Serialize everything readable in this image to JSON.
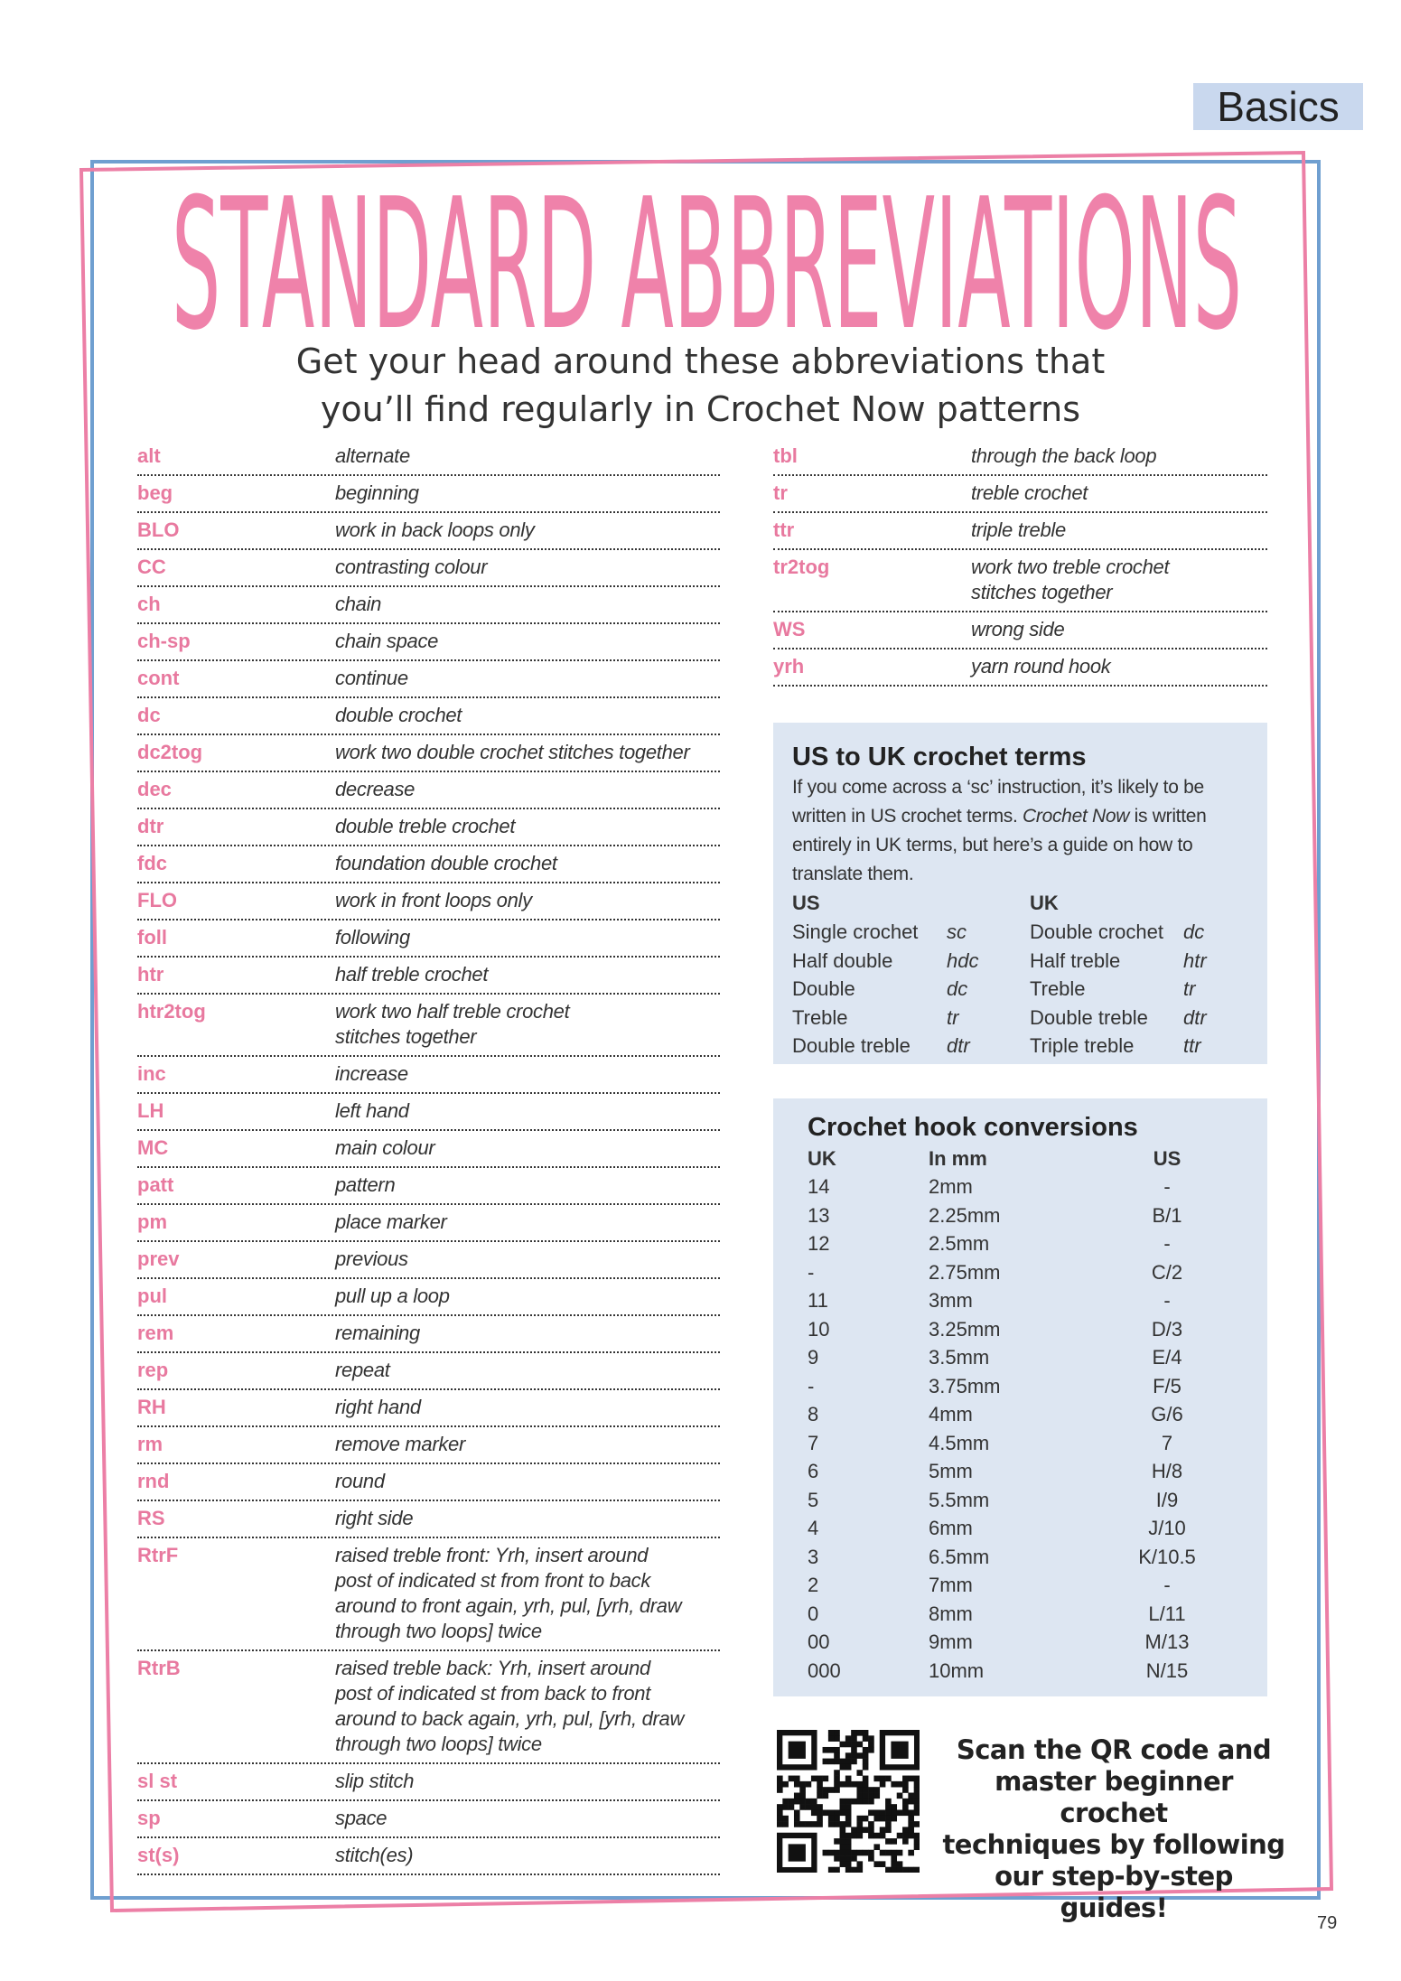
{
  "header": {
    "section": "Basics",
    "title": "STANDARD ABBREVIATIONS",
    "subtitle": [
      "Get your head around these abbreviations that",
      "you’ll find regularly in Crochet Now patterns"
    ]
  },
  "abbreviations": {
    "left": [
      [
        "alt",
        "alternate"
      ],
      [
        "beg",
        "beginning"
      ],
      [
        "BLO",
        "work in back loops only"
      ],
      [
        "CC",
        "contrasting colour"
      ],
      [
        "ch",
        "chain"
      ],
      [
        "ch-sp",
        "chain space"
      ],
      [
        "cont",
        "continue"
      ],
      [
        "dc",
        "double crochet"
      ],
      [
        "dc2tog",
        "work two double crochet stitches together"
      ],
      [
        "dec",
        "decrease"
      ],
      [
        "dtr",
        "double treble crochet"
      ],
      [
        "fdc",
        "foundation double crochet"
      ],
      [
        "FLO",
        "work in front loops only"
      ],
      [
        "foll",
        "following"
      ],
      [
        "htr",
        "half treble crochet"
      ],
      [
        "htr2tog",
        [
          "work two half treble crochet",
          "stitches together"
        ]
      ],
      [
        "inc",
        "increase"
      ],
      [
        "LH",
        "left hand"
      ],
      [
        "MC",
        "main colour"
      ],
      [
        "patt",
        "pattern"
      ],
      [
        "pm",
        "place marker"
      ],
      [
        "prev",
        "previous"
      ],
      [
        "pul",
        "pull up a loop"
      ],
      [
        "rem",
        "remaining"
      ],
      [
        "rep",
        "repeat"
      ],
      [
        "RH",
        "right hand"
      ],
      [
        "rm",
        "remove marker"
      ],
      [
        "rnd",
        "round"
      ],
      [
        "RS",
        "right side"
      ],
      [
        "RtrF",
        [
          "raised treble front: Yrh, insert around",
          "post of indicated st from front to back",
          "around to front again, yrh, pul, [yrh, draw",
          "through two loops] twice"
        ]
      ],
      [
        "RtrB",
        [
          "raised treble back: Yrh, insert around",
          "post of indicated st from back  to front",
          "around to back again, yrh, pul, [yrh, draw",
          "through two loops] twice"
        ]
      ],
      [
        "sl st",
        "slip stitch"
      ],
      [
        "sp",
        "space"
      ],
      [
        "st(s)",
        "stitch(es)"
      ]
    ],
    "right": [
      [
        "tbl",
        "through the back loop"
      ],
      [
        "tr",
        "treble crochet"
      ],
      [
        "ttr",
        "triple treble"
      ],
      [
        "tr2tog",
        [
          "work two treble crochet",
          "stitches together"
        ]
      ],
      [
        "WS",
        "wrong side"
      ],
      [
        "yrh",
        "yarn round hook"
      ]
    ]
  },
  "us_uk": {
    "title": "US to UK crochet terms",
    "intro": [
      "If you come across a ‘sc’ instruction, it’s likely to be written in US crochet terms. ",
      "Crochet Now",
      " is written entirely in UK terms, but here’s a guide on how to translate them."
    ],
    "headers": [
      "US",
      "UK"
    ],
    "rows": [
      [
        "Single crochet",
        "sc",
        "Double crochet",
        "dc"
      ],
      [
        "Half double",
        "hdc",
        "Half treble",
        "htr"
      ],
      [
        "Double",
        "dc",
        "Treble",
        "tr"
      ],
      [
        "Treble",
        "tr",
        "Double treble",
        "dtr"
      ],
      [
        "Double treble",
        "dtr",
        "Triple treble",
        "ttr"
      ]
    ]
  },
  "hooks": {
    "title": "Crochet hook conversions",
    "headers": [
      "UK",
      "In mm",
      "US"
    ],
    "rows": [
      [
        "14",
        "2mm",
        "-"
      ],
      [
        "13",
        "2.25mm",
        "B/1"
      ],
      [
        "12",
        "2.5mm",
        "-"
      ],
      [
        "-",
        "2.75mm",
        "C/2"
      ],
      [
        "11",
        "3mm",
        "-"
      ],
      [
        "10",
        "3.25mm",
        "D/3"
      ],
      [
        "9",
        "3.5mm",
        "E/4"
      ],
      [
        "-",
        "3.75mm",
        "F/5"
      ],
      [
        "8",
        "4mm",
        "G/6"
      ],
      [
        "7",
        "4.5mm",
        "7"
      ],
      [
        "6",
        "5mm",
        "H/8"
      ],
      [
        "5",
        "5.5mm",
        "I/9"
      ],
      [
        "4",
        "6mm",
        "J/10"
      ],
      [
        "3",
        "6.5mm",
        "K/10.5"
      ],
      [
        "2",
        "7mm",
        "-"
      ],
      [
        "0",
        "8mm",
        "L/11"
      ],
      [
        "00",
        "9mm",
        "M/13"
      ],
      [
        "000",
        "10mm",
        "N/15"
      ]
    ]
  },
  "qr_text": [
    "Scan the QR code and",
    "master beginner crochet",
    "techniques by following",
    "our step-by-step guides!"
  ],
  "page_number": "79"
}
